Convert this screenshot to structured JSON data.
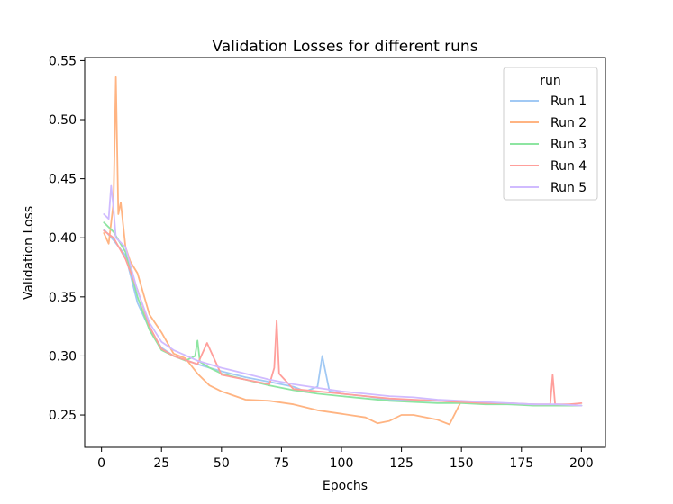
{
  "chart_data": {
    "type": "line",
    "title": "Validation Losses for different runs",
    "xlabel": "Epochs",
    "ylabel": "Validation Loss",
    "xlim": [
      -7,
      210
    ],
    "ylim": [
      0.2226,
      0.5526
    ],
    "x_ticks": [
      0,
      25,
      50,
      75,
      100,
      125,
      150,
      175,
      200
    ],
    "y_ticks": [
      0.25,
      0.3,
      0.35,
      0.4,
      0.45,
      0.5,
      0.55
    ],
    "y_tick_labels": [
      "0.25",
      "0.30",
      "0.35",
      "0.40",
      "0.45",
      "0.50",
      "0.55"
    ],
    "grid": false,
    "legend": {
      "title": "run",
      "placement": "top-right"
    },
    "series": [
      {
        "name": "Run 1",
        "color": "#a1c9f4",
        "x": [
          1,
          5,
          10,
          15,
          20,
          25,
          30,
          40,
          50,
          60,
          70,
          80,
          85,
          90,
          92,
          95,
          100,
          110,
          120,
          130,
          140,
          150,
          160,
          170,
          180,
          190,
          200
        ],
        "y": [
          0.407,
          0.398,
          0.385,
          0.345,
          0.323,
          0.307,
          0.3,
          0.293,
          0.287,
          0.282,
          0.278,
          0.274,
          0.27,
          0.274,
          0.3,
          0.27,
          0.268,
          0.266,
          0.263,
          0.262,
          0.262,
          0.261,
          0.26,
          0.259,
          0.259,
          0.258,
          0.258
        ]
      },
      {
        "name": "Run 2",
        "color": "#ffb482",
        "x": [
          1,
          3,
          5,
          6,
          7,
          8,
          10,
          12,
          15,
          20,
          25,
          30,
          35,
          40,
          45,
          50,
          60,
          70,
          80,
          90,
          100,
          110,
          115,
          120,
          125,
          130,
          140,
          145,
          150
        ],
        "y": [
          0.404,
          0.395,
          0.43,
          0.536,
          0.42,
          0.43,
          0.392,
          0.38,
          0.37,
          0.335,
          0.32,
          0.302,
          0.298,
          0.285,
          0.275,
          0.27,
          0.263,
          0.262,
          0.259,
          0.254,
          0.251,
          0.248,
          0.243,
          0.245,
          0.25,
          0.25,
          0.246,
          0.242,
          0.262
        ]
      },
      {
        "name": "Run 3",
        "color": "#8de5a1",
        "x": [
          1,
          5,
          10,
          15,
          20,
          25,
          30,
          35,
          39,
          40,
          41,
          45,
          50,
          60,
          70,
          80,
          90,
          100,
          110,
          120,
          130,
          140,
          150,
          160,
          170,
          180,
          190,
          200
        ],
        "y": [
          0.413,
          0.405,
          0.388,
          0.35,
          0.322,
          0.305,
          0.3,
          0.296,
          0.3,
          0.313,
          0.295,
          0.29,
          0.285,
          0.28,
          0.275,
          0.271,
          0.268,
          0.266,
          0.264,
          0.262,
          0.261,
          0.26,
          0.26,
          0.259,
          0.259,
          0.258,
          0.258,
          0.258
        ]
      },
      {
        "name": "Run 4",
        "color": "#ff9f9b",
        "x": [
          1,
          5,
          10,
          15,
          20,
          25,
          30,
          40,
          44,
          50,
          60,
          70,
          72,
          73,
          74,
          80,
          90,
          100,
          110,
          120,
          130,
          140,
          150,
          160,
          170,
          180,
          187,
          188,
          189,
          195,
          200
        ],
        "y": [
          0.406,
          0.4,
          0.382,
          0.356,
          0.325,
          0.306,
          0.3,
          0.293,
          0.311,
          0.284,
          0.28,
          0.276,
          0.29,
          0.33,
          0.285,
          0.272,
          0.27,
          0.268,
          0.266,
          0.264,
          0.263,
          0.262,
          0.261,
          0.26,
          0.26,
          0.259,
          0.259,
          0.284,
          0.259,
          0.259,
          0.26
        ]
      },
      {
        "name": "Run 5",
        "color": "#d0bbff",
        "x": [
          1,
          3,
          4,
          5,
          6,
          8,
          10,
          15,
          20,
          25,
          30,
          40,
          50,
          60,
          70,
          80,
          90,
          100,
          110,
          120,
          130,
          140,
          150,
          160,
          170,
          180,
          190,
          200
        ],
        "y": [
          0.42,
          0.416,
          0.444,
          0.425,
          0.4,
          0.396,
          0.392,
          0.355,
          0.328,
          0.312,
          0.305,
          0.296,
          0.29,
          0.285,
          0.28,
          0.276,
          0.273,
          0.27,
          0.268,
          0.266,
          0.265,
          0.263,
          0.262,
          0.261,
          0.26,
          0.259,
          0.259,
          0.258
        ]
      }
    ]
  }
}
